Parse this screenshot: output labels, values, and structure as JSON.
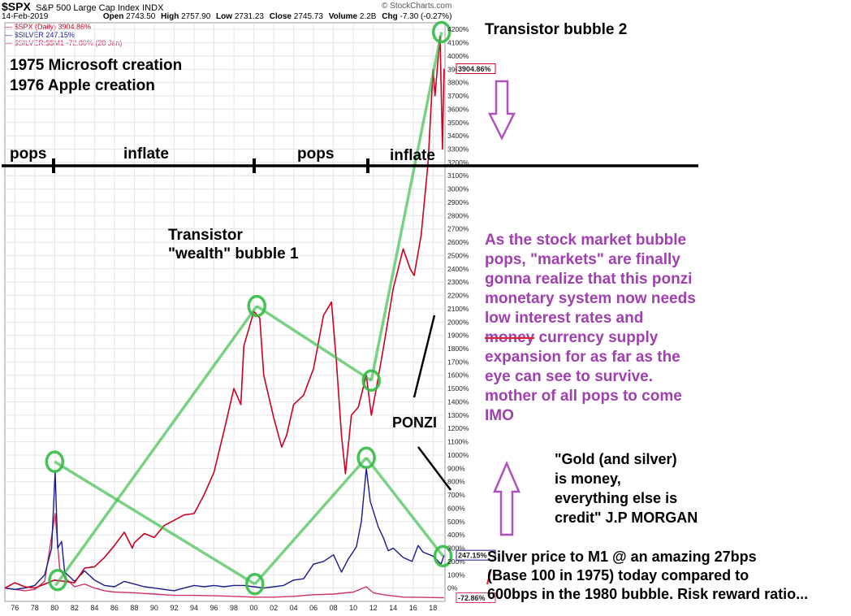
{
  "header": {
    "symbol": "$SPX",
    "name": "S&P 500 Large Cap Index",
    "exchange": "INDX",
    "watermark": "© StockCharts.com",
    "date": "14-Feb-2019",
    "open_label": "Open",
    "open": "2743.50",
    "high_label": "High",
    "high": "2757.90",
    "low_label": "Low",
    "low": "2731.23",
    "close_label": "Close",
    "close": "2745.73",
    "volume_label": "Volume",
    "volume": "2.2B",
    "chg_label": "Chg",
    "chg": "-7.30 (-0.27%)"
  },
  "legend": [
    {
      "text": "— $SPX (Daily) 3904.86%",
      "color": "#cc0022"
    },
    {
      "text": "— $SILVER 247.15%",
      "color": "#1a1a8c"
    },
    {
      "text": "— $SILVER:$$M1 -72.86% (28 Jan)",
      "color": "#cc3366"
    }
  ],
  "annotations": {
    "creation_lines": [
      "1975 Microsoft creation",
      "1976 Apple creation"
    ],
    "bubble2": "Transistor bubble 2",
    "bubble1_lines": [
      "Transistor",
      "\"wealth\" bubble 1"
    ],
    "phases": [
      "pops",
      "inflate",
      "pops",
      "inflate"
    ],
    "ponzi": "PONZI",
    "thesis_lines": [
      "As the stock market bubble",
      "pops, \"markets\" are finally",
      "gonna realize that this ponzi",
      "monetary system now needs",
      "low interest rates and",
      "money currency supply",
      "expansion for as far as the",
      "eye can see to survive.",
      "mother of all pops to come",
      "IMO"
    ],
    "quote_lines": [
      "\"Gold (and silver)",
      "is money,",
      "everything else is",
      "credit\" J.P MORGAN"
    ],
    "silver_lines": [
      "Silver price to M1 @ an amazing 27bps",
      "(Base 100 in 1975) today compared to",
      "600bps in the 1980 bubble. Risk reward ratio..."
    ]
  },
  "colors": {
    "spx": "#cc0022",
    "silver": "#1a1a8c",
    "silver_m1": "#cc3366",
    "green_overlay": "#33bb44",
    "thesis_text": "#a040b0",
    "arrow": "#b050c0",
    "grid": "#e4e4e4"
  },
  "chart_data": {
    "type": "line",
    "xlabel": "",
    "ylabel": "",
    "x_ticks": [
      "76",
      "78",
      "80",
      "82",
      "84",
      "86",
      "88",
      "90",
      "92",
      "94",
      "96",
      "98",
      "00",
      "02",
      "04",
      "06",
      "08",
      "10",
      "12",
      "14",
      "16",
      "18"
    ],
    "y_ticks": [
      "0%",
      "100%",
      "200%",
      "300%",
      "400%",
      "500%",
      "600%",
      "700%",
      "800%",
      "900%",
      "1000%",
      "1100%",
      "1200%",
      "1300%",
      "1400%",
      "1500%",
      "1600%",
      "1700%",
      "1800%",
      "1900%",
      "2000%",
      "2100%",
      "2200%",
      "2300%",
      "2400%",
      "2500%",
      "2600%",
      "2700%",
      "2800%",
      "2900%",
      "3000%",
      "3100%",
      "3200%",
      "3300%",
      "3400%",
      "3500%",
      "3600%",
      "3700%",
      "3800%",
      "3900%",
      "4000%",
      "4100%",
      "4200%"
    ],
    "xlim": [
      1975,
      2019.2
    ],
    "ylim": [
      -100,
      4250
    ],
    "grid": true,
    "legend_position": "top-left",
    "end_labels": [
      "3904.86%",
      "247.15%",
      "-72.86%"
    ],
    "series": [
      {
        "name": "$SPX (Daily) 3904.86%",
        "color": "#cc0022",
        "points": [
          [
            1975,
            0
          ],
          [
            1976,
            40
          ],
          [
            1977,
            10
          ],
          [
            1978,
            0
          ],
          [
            1979,
            30
          ],
          [
            1980,
            60
          ],
          [
            1981,
            50
          ],
          [
            1982,
            40
          ],
          [
            1983,
            150
          ],
          [
            1984,
            160
          ],
          [
            1985,
            230
          ],
          [
            1986,
            320
          ],
          [
            1987,
            420
          ],
          [
            1987.8,
            300
          ],
          [
            1988,
            340
          ],
          [
            1989,
            410
          ],
          [
            1990,
            380
          ],
          [
            1991,
            470
          ],
          [
            1992,
            510
          ],
          [
            1993,
            550
          ],
          [
            1994,
            560
          ],
          [
            1995,
            700
          ],
          [
            1996,
            870
          ],
          [
            1997,
            1180
          ],
          [
            1998,
            1500
          ],
          [
            1998.7,
            1380
          ],
          [
            1999,
            1820
          ],
          [
            2000,
            2080
          ],
          [
            2000.6,
            2030
          ],
          [
            2001,
            1600
          ],
          [
            2002,
            1280
          ],
          [
            2002.8,
            1060
          ],
          [
            2003.3,
            1150
          ],
          [
            2004,
            1380
          ],
          [
            2005,
            1450
          ],
          [
            2006,
            1650
          ],
          [
            2007,
            2050
          ],
          [
            2007.8,
            2150
          ],
          [
            2008.3,
            1700
          ],
          [
            2008.8,
            1150
          ],
          [
            2009.2,
            860
          ],
          [
            2009.8,
            1300
          ],
          [
            2010.5,
            1360
          ],
          [
            2011.3,
            1600
          ],
          [
            2011.8,
            1300
          ],
          [
            2012.3,
            1500
          ],
          [
            2013,
            1800
          ],
          [
            2014,
            2250
          ],
          [
            2015,
            2550
          ],
          [
            2015.7,
            2400
          ],
          [
            2016.1,
            2350
          ],
          [
            2016.8,
            2650
          ],
          [
            2017.5,
            3200
          ],
          [
            2018,
            3900
          ],
          [
            2018.2,
            3700
          ],
          [
            2018.7,
            4150
          ],
          [
            2018.95,
            3300
          ],
          [
            2019.1,
            3905
          ]
        ]
      },
      {
        "name": "$SILVER 247.15%",
        "color": "#1a1a8c",
        "points": [
          [
            1975,
            0
          ],
          [
            1976,
            -10
          ],
          [
            1977,
            0
          ],
          [
            1978,
            20
          ],
          [
            1979,
            100
          ],
          [
            1979.7,
            300
          ],
          [
            1980.05,
            880
          ],
          [
            1980.3,
            300
          ],
          [
            1980.7,
            350
          ],
          [
            1981,
            120
          ],
          [
            1982,
            50
          ],
          [
            1983,
            130
          ],
          [
            1984,
            60
          ],
          [
            1985,
            20
          ],
          [
            1986,
            10
          ],
          [
            1987,
            50
          ],
          [
            1988,
            30
          ],
          [
            1989,
            10
          ],
          [
            1990,
            0
          ],
          [
            1991,
            -10
          ],
          [
            1992,
            -20
          ],
          [
            1993,
            0
          ],
          [
            1994,
            20
          ],
          [
            1995,
            10
          ],
          [
            1996,
            20
          ],
          [
            1997,
            10
          ],
          [
            1998,
            20
          ],
          [
            1999,
            20
          ],
          [
            2000,
            10
          ],
          [
            2001,
            0
          ],
          [
            2002,
            10
          ],
          [
            2003,
            20
          ],
          [
            2004,
            60
          ],
          [
            2005,
            70
          ],
          [
            2006,
            180
          ],
          [
            2007,
            200
          ],
          [
            2008,
            250
          ],
          [
            2008.8,
            120
          ],
          [
            2009.5,
            220
          ],
          [
            2010.3,
            310
          ],
          [
            2010.8,
            500
          ],
          [
            2011.3,
            900
          ],
          [
            2011.7,
            650
          ],
          [
            2012,
            580
          ],
          [
            2012.5,
            460
          ],
          [
            2013,
            380
          ],
          [
            2013.5,
            280
          ],
          [
            2014,
            300
          ],
          [
            2015,
            230
          ],
          [
            2015.9,
            200
          ],
          [
            2016.5,
            320
          ],
          [
            2017,
            270
          ],
          [
            2018,
            240
          ],
          [
            2018.8,
            180
          ],
          [
            2019.1,
            247
          ]
        ]
      },
      {
        "name": "$SILVER:$$M1 -72.86% (28 Jan)",
        "color": "#cc3366",
        "points": [
          [
            1975,
            0
          ],
          [
            1976,
            -10
          ],
          [
            1977,
            -20
          ],
          [
            1978,
            -10
          ],
          [
            1979,
            50
          ],
          [
            1980.05,
            560
          ],
          [
            1980.5,
            150
          ],
          [
            1981,
            80
          ],
          [
            1982,
            10
          ],
          [
            1983,
            30
          ],
          [
            1984,
            0
          ],
          [
            1985,
            -20
          ],
          [
            1986,
            -30
          ],
          [
            1988,
            -35
          ],
          [
            1990,
            -45
          ],
          [
            1992,
            -55
          ],
          [
            1994,
            -55
          ],
          [
            1996,
            -58
          ],
          [
            1998,
            -62
          ],
          [
            2000,
            -68
          ],
          [
            2002,
            -68
          ],
          [
            2004,
            -62
          ],
          [
            2006,
            -50
          ],
          [
            2008,
            -45
          ],
          [
            2010,
            -30
          ],
          [
            2011.3,
            10
          ],
          [
            2012,
            -35
          ],
          [
            2013,
            -50
          ],
          [
            2015,
            -68
          ],
          [
            2017,
            -70
          ],
          [
            2019.1,
            -73
          ]
        ]
      }
    ]
  }
}
